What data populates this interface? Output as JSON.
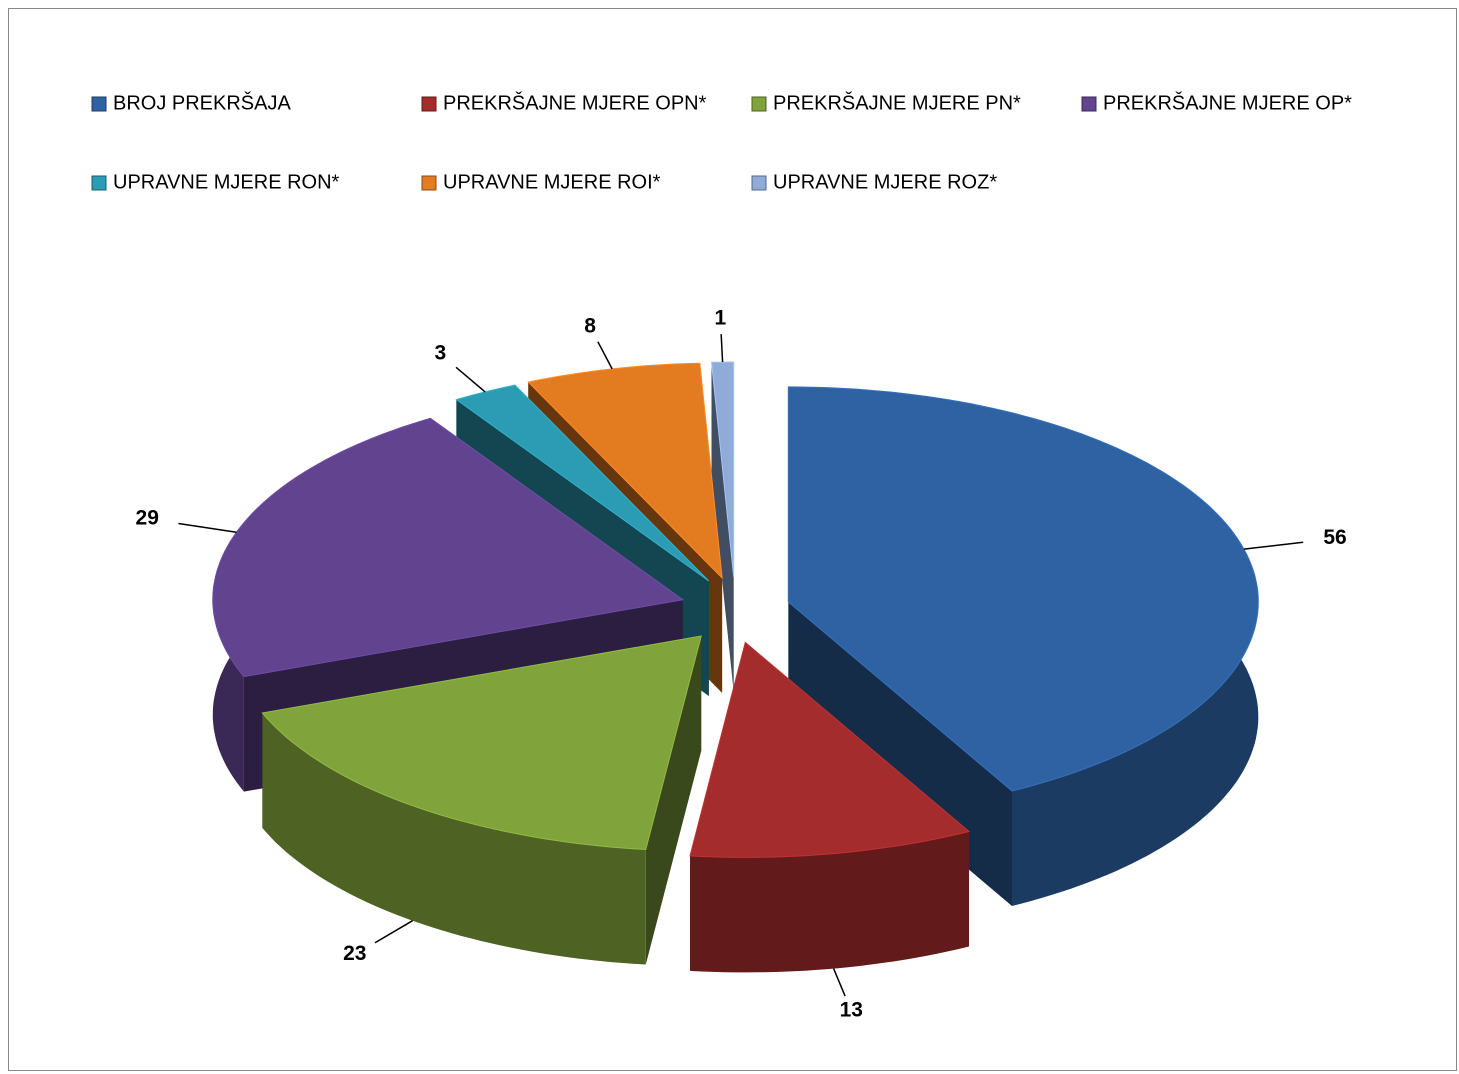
{
  "chart_data": {
    "type": "pie",
    "categories": [
      "BROJ PREKRŠAJA",
      "PREKRŠAJNE MJERE OPN*",
      "PREKRŠAJNE MJERE PN*",
      "PREKRŠAJNE MJERE OP*",
      "UPRAVNE MJERE RON*",
      "UPRAVNE MJERE ROI*",
      "UPRAVNE MJERE ROZ*"
    ],
    "values": [
      56,
      13,
      23,
      29,
      3,
      8,
      1
    ],
    "colors": [
      "#2f62a3",
      "#a52c2c",
      "#80a33b",
      "#614390",
      "#2b9cb3",
      "#e37b21",
      "#90abd8"
    ],
    "legend": "top"
  }
}
